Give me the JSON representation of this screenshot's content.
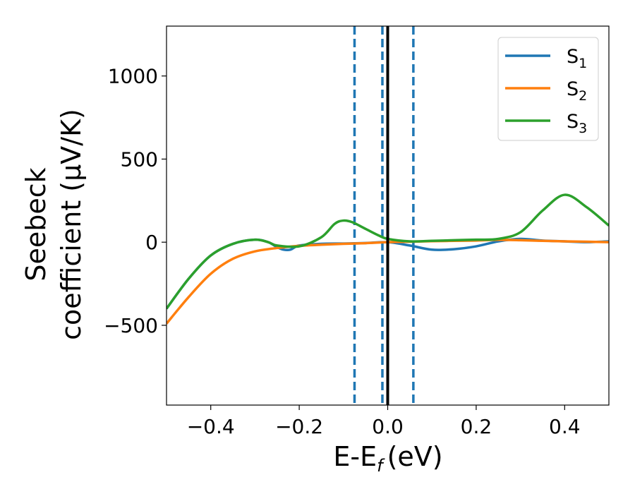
{
  "chart_data": {
    "type": "line",
    "xlabel": "E-E",
    "xlabel_sub": "f",
    "xlabel_unit": "(eV)",
    "ylabel_line1": "Seebeck",
    "ylabel_line2": "coefficient  (μV/K)",
    "xlim": [
      -0.5,
      0.5
    ],
    "ylim": [
      -980,
      1300
    ],
    "xticks": [
      -0.4,
      -0.2,
      0.0,
      0.2,
      0.4
    ],
    "xtick_labels": [
      "−0.4",
      "−0.2",
      "0.0",
      "0.2",
      "0.4"
    ],
    "yticks": [
      -500,
      0,
      500,
      1000
    ],
    "ytick_labels": [
      "−500",
      "0",
      "500",
      "1000"
    ],
    "grid": false,
    "legend_position": "top-right",
    "vlines": [
      {
        "x": -0.075,
        "style": "dashed",
        "color": "#1f77b4"
      },
      {
        "x": -0.012,
        "style": "dashed",
        "color": "#1f77b4"
      },
      {
        "x": 0.058,
        "style": "dashed",
        "color": "#1f77b4"
      },
      {
        "x": 0.0,
        "style": "solid",
        "color": "#000000"
      }
    ],
    "series": [
      {
        "name": "S",
        "subscript": "1",
        "color": "#1f77b4",
        "x": [
          -0.5,
          -0.45,
          -0.4,
          -0.35,
          -0.3,
          -0.27,
          -0.25,
          -0.235,
          -0.22,
          -0.21,
          -0.2,
          -0.15,
          -0.1,
          -0.05,
          0.0,
          0.05,
          0.1,
          0.15,
          0.2,
          0.25,
          0.3,
          0.35,
          0.4,
          0.45,
          0.5
        ],
        "values": [
          -400,
          -220,
          -80,
          -10,
          15,
          0,
          -30,
          -45,
          -45,
          -30,
          -20,
          -10,
          -8,
          -5,
          0,
          -20,
          -45,
          -42,
          -25,
          5,
          20,
          10,
          5,
          0,
          5
        ]
      },
      {
        "name": "S",
        "subscript": "2",
        "color": "#ff7f0e",
        "x": [
          -0.5,
          -0.45,
          -0.4,
          -0.35,
          -0.3,
          -0.25,
          -0.2,
          -0.15,
          -0.1,
          -0.05,
          0.0,
          0.05,
          0.1,
          0.15,
          0.2,
          0.25,
          0.3,
          0.35,
          0.4,
          0.45,
          0.5
        ],
        "values": [
          -490,
          -330,
          -190,
          -100,
          -55,
          -35,
          -22,
          -15,
          -10,
          -6,
          0,
          3,
          6,
          8,
          10,
          14,
          12,
          8,
          5,
          3,
          0
        ]
      },
      {
        "name": "S",
        "subscript": "3",
        "color": "#2ca02c",
        "x": [
          -0.5,
          -0.45,
          -0.4,
          -0.35,
          -0.3,
          -0.27,
          -0.25,
          -0.2,
          -0.15,
          -0.12,
          -0.1,
          -0.08,
          -0.05,
          -0.02,
          0.0,
          0.05,
          0.1,
          0.15,
          0.2,
          0.25,
          0.3,
          0.35,
          0.4,
          0.45,
          0.5
        ],
        "values": [
          -400,
          -220,
          -80,
          -10,
          15,
          0,
          -20,
          -25,
          30,
          110,
          130,
          120,
          80,
          40,
          20,
          5,
          8,
          12,
          15,
          20,
          60,
          190,
          285,
          210,
          100
        ]
      }
    ]
  }
}
